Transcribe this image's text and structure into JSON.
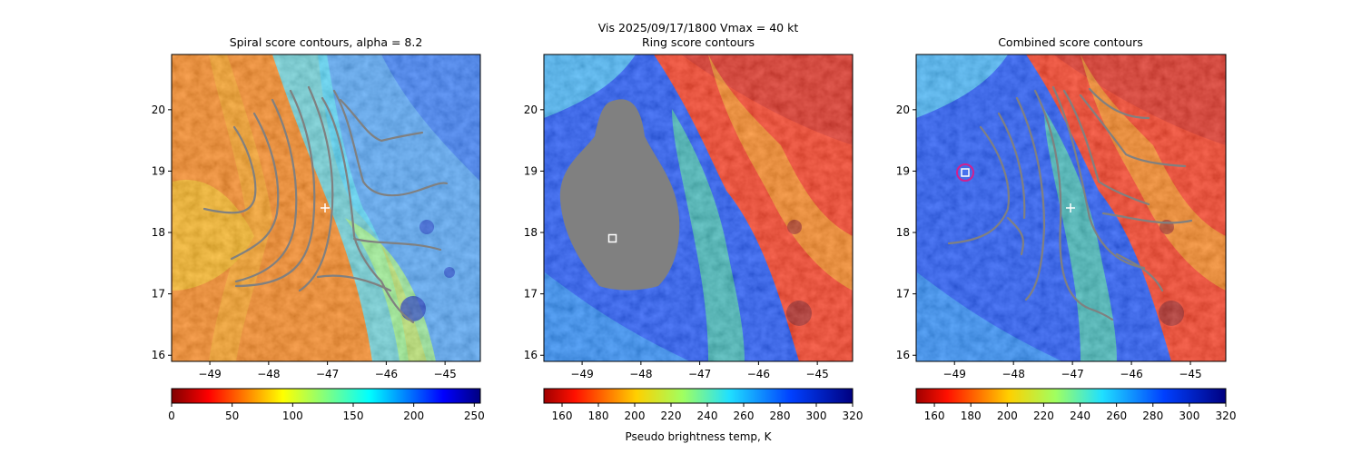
{
  "figure": {
    "suptitle": "Vis  2025/09/17/1800    Vmax = 40 kt",
    "colorbar_label": "Pseudo brightness temp, K"
  },
  "chart_data": [
    {
      "type": "heatmap",
      "title": "Spiral score contours, alpha =  8.2",
      "xlabel": "",
      "ylabel": "",
      "xlim": [
        -49.65,
        -44.4
      ],
      "ylim": [
        15.9,
        20.9
      ],
      "x_ticks": [
        -49,
        -48,
        -47,
        -46,
        -45
      ],
      "y_ticks": [
        16,
        17,
        18,
        19,
        20
      ],
      "colormap": "jet_r",
      "colorbar": {
        "min": 0,
        "max": 255,
        "ticks": [
          0,
          50,
          100,
          150,
          200,
          250
        ]
      },
      "markers": [
        {
          "kind": "plus",
          "lon": -47.0,
          "lat": 18.4,
          "color": "#ffffff"
        }
      ],
      "contour_color": "#808080"
    },
    {
      "type": "heatmap",
      "title": "Ring score contours",
      "xlabel": "",
      "ylabel": "",
      "xlim": [
        -49.65,
        -44.4
      ],
      "ylim": [
        15.9,
        20.9
      ],
      "x_ticks": [
        -49,
        -48,
        -47,
        -46,
        -45
      ],
      "y_ticks": [
        16,
        17,
        18,
        19,
        20
      ],
      "colormap": "jet_r",
      "colorbar": {
        "min": 150,
        "max": 320,
        "ticks": [
          160,
          180,
          200,
          220,
          240,
          260,
          280,
          300,
          320
        ]
      },
      "markers": [
        {
          "kind": "square",
          "lon": -48.5,
          "lat": 17.9,
          "color": "#ffffff"
        }
      ],
      "masked_region_color": "#808080"
    },
    {
      "type": "heatmap",
      "title": "Combined score contours",
      "xlabel": "",
      "ylabel": "",
      "xlim": [
        -49.65,
        -44.4
      ],
      "ylim": [
        15.9,
        20.9
      ],
      "x_ticks": [
        -49,
        -48,
        -47,
        -46,
        -45
      ],
      "y_ticks": [
        16,
        17,
        18,
        19,
        20
      ],
      "colormap": "jet_r",
      "colorbar": {
        "min": 150,
        "max": 320,
        "ticks": [
          160,
          180,
          200,
          220,
          240,
          260,
          280,
          300,
          320
        ]
      },
      "markers": [
        {
          "kind": "square",
          "lon": -48.8,
          "lat": 19.0,
          "color": "#ffffff"
        },
        {
          "kind": "circle",
          "lon": -48.8,
          "lat": 19.0,
          "color": "#d02090"
        },
        {
          "kind": "plus",
          "lon": -47.0,
          "lat": 18.4,
          "color": "#ffffff"
        }
      ],
      "contour_color": "#808080"
    }
  ]
}
